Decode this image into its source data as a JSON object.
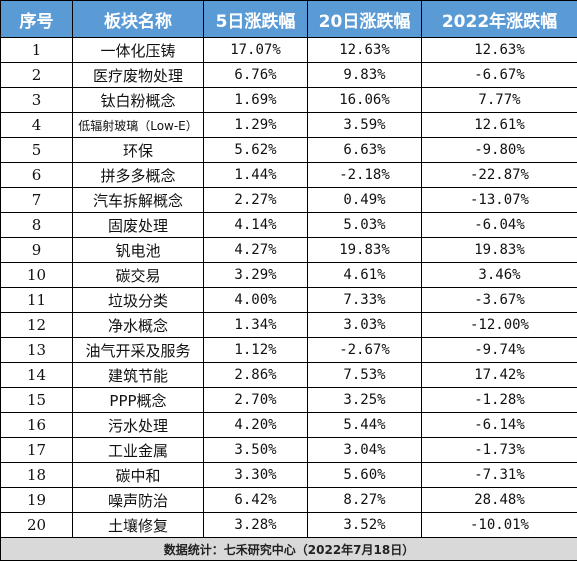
{
  "table": {
    "headers": [
      "序号",
      "板块名称",
      "5日涨跌幅",
      "20日涨跌幅",
      "2022年涨跌幅"
    ],
    "rows": [
      [
        "1",
        "一体化压铸",
        "17.07%",
        "12.63%",
        "12.63%"
      ],
      [
        "2",
        "医疗废物处理",
        "6.76%",
        "9.83%",
        "-6.67%"
      ],
      [
        "3",
        "钛白粉概念",
        "1.69%",
        "16.06%",
        "7.77%"
      ],
      [
        "4",
        "低辐射玻璃（Low-E）",
        "1.29%",
        "3.59%",
        "12.61%"
      ],
      [
        "5",
        "环保",
        "5.62%",
        "6.63%",
        "-9.80%"
      ],
      [
        "6",
        "拼多多概念",
        "1.44%",
        "-2.18%",
        "-22.87%"
      ],
      [
        "7",
        "汽车拆解概念",
        "2.27%",
        "0.49%",
        "-13.07%"
      ],
      [
        "8",
        "固废处理",
        "4.14%",
        "5.03%",
        "-6.04%"
      ],
      [
        "9",
        "钒电池",
        "4.27%",
        "19.83%",
        "19.83%"
      ],
      [
        "10",
        "碳交易",
        "3.29%",
        "4.61%",
        "3.46%"
      ],
      [
        "11",
        "垃圾分类",
        "4.00%",
        "7.33%",
        "-3.67%"
      ],
      [
        "12",
        "净水概念",
        "1.34%",
        "3.03%",
        "-12.00%"
      ],
      [
        "13",
        "油气开采及服务",
        "1.12%",
        "-2.67%",
        "-9.74%"
      ],
      [
        "14",
        "建筑节能",
        "2.86%",
        "7.53%",
        "17.42%"
      ],
      [
        "15",
        "PPP概念",
        "2.70%",
        "3.25%",
        "-1.28%"
      ],
      [
        "16",
        "污水处理",
        "4.20%",
        "5.44%",
        "-6.14%"
      ],
      [
        "17",
        "工业金属",
        "3.50%",
        "3.04%",
        "-1.73%"
      ],
      [
        "18",
        "碳中和",
        "3.30%",
        "5.60%",
        "-7.31%"
      ],
      [
        "19",
        "噪声防治",
        "6.42%",
        "8.27%",
        "28.48%"
      ],
      [
        "20",
        "土壤修复",
        "3.28%",
        "3.52%",
        "-10.01%"
      ]
    ],
    "footer": "数据统计：七禾研究中心（2022年7月18日）"
  },
  "colors": {
    "header_bg": "#5b9bd5",
    "header_text": "#ffffff",
    "footer_bg": "#d9d9d9",
    "border": "#000000"
  }
}
